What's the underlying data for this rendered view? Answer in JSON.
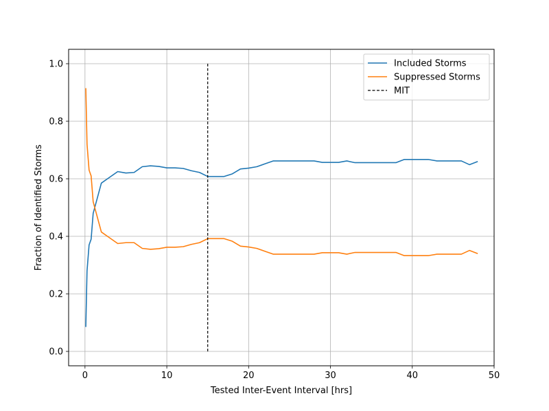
{
  "chart_data": {
    "type": "line",
    "xlabel": "Tested Inter-Event Interval [hrs]",
    "ylabel": "Fraction of Identified Storms",
    "xlim": [
      -2,
      50
    ],
    "ylim": [
      -0.05,
      1.05
    ],
    "xticks": [
      0,
      10,
      20,
      30,
      40,
      50
    ],
    "yticks": [
      0.0,
      0.2,
      0.4,
      0.6,
      0.8,
      1.0
    ],
    "xtick_labels": [
      "0",
      "10",
      "20",
      "30",
      "40",
      "50"
    ],
    "ytick_labels": [
      "0.0",
      "0.2",
      "0.4",
      "0.6",
      "0.8",
      "1.0"
    ],
    "grid": true,
    "legend_position": "top-right",
    "series": [
      {
        "name": "Included Storms",
        "color": "#1f77b4",
        "style": "solid",
        "x": [
          0.1,
          0.25,
          0.5,
          0.75,
          1,
          2,
          3,
          4,
          5,
          6,
          7,
          8,
          9,
          10,
          11,
          12,
          13,
          14,
          15,
          16,
          17,
          18,
          19,
          20,
          21,
          22,
          23,
          24,
          25,
          26,
          27,
          28,
          29,
          30,
          31,
          32,
          33,
          34,
          35,
          36,
          37,
          38,
          39,
          40,
          41,
          42,
          43,
          44,
          45,
          46,
          47,
          48
        ],
        "y": [
          0.085,
          0.28,
          0.37,
          0.39,
          0.48,
          0.585,
          0.605,
          0.625,
          0.62,
          0.622,
          0.642,
          0.645,
          0.643,
          0.638,
          0.638,
          0.636,
          0.628,
          0.622,
          0.608,
          0.608,
          0.608,
          0.617,
          0.634,
          0.637,
          0.642,
          0.652,
          0.662,
          0.662,
          0.662,
          0.662,
          0.662,
          0.662,
          0.657,
          0.657,
          0.657,
          0.662,
          0.656,
          0.656,
          0.656,
          0.656,
          0.656,
          0.656,
          0.667,
          0.667,
          0.667,
          0.667,
          0.662,
          0.662,
          0.662,
          0.662,
          0.649,
          0.66
        ]
      },
      {
        "name": "Suppressed Storms",
        "color": "#ff7f0e",
        "style": "solid",
        "x": [
          0.1,
          0.25,
          0.5,
          0.75,
          1,
          2,
          3,
          4,
          5,
          6,
          7,
          8,
          9,
          10,
          11,
          12,
          13,
          14,
          15,
          16,
          17,
          18,
          19,
          20,
          21,
          22,
          23,
          24,
          25,
          26,
          27,
          28,
          29,
          30,
          31,
          32,
          33,
          34,
          35,
          36,
          37,
          38,
          39,
          40,
          41,
          42,
          43,
          44,
          45,
          46,
          47,
          48
        ],
        "y": [
          0.915,
          0.72,
          0.63,
          0.61,
          0.52,
          0.415,
          0.395,
          0.375,
          0.378,
          0.378,
          0.358,
          0.355,
          0.357,
          0.362,
          0.362,
          0.364,
          0.372,
          0.378,
          0.392,
          0.392,
          0.392,
          0.383,
          0.366,
          0.363,
          0.358,
          0.348,
          0.338,
          0.338,
          0.338,
          0.338,
          0.338,
          0.338,
          0.343,
          0.343,
          0.343,
          0.338,
          0.344,
          0.344,
          0.344,
          0.344,
          0.344,
          0.344,
          0.333,
          0.333,
          0.333,
          0.333,
          0.338,
          0.338,
          0.338,
          0.338,
          0.351,
          0.34
        ]
      },
      {
        "name": "MIT",
        "color": "#000000",
        "style": "dashed",
        "x": [
          15,
          15
        ],
        "y": [
          0.0,
          1.0
        ]
      }
    ]
  }
}
